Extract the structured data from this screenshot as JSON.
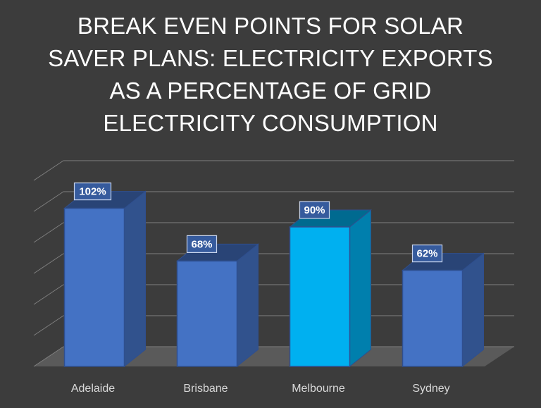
{
  "chart_data": {
    "type": "bar",
    "style": "3d-column",
    "title_lines": [
      "BREAK EVEN POINTS FOR SOLAR",
      "SAVER PLANS:  ELECTRICITY EXPORTS",
      "AS A PERCENTAGE OF GRID",
      "ELECTRICITY CONSUMPTION"
    ],
    "categories": [
      "Adelaide",
      "Brisbane",
      "Melbourne",
      "Sydney"
    ],
    "values": [
      102,
      68,
      90,
      62
    ],
    "data_labels": [
      "102%",
      "68%",
      "90%",
      "62%"
    ],
    "highlight_index": 2,
    "ylim": [
      0,
      120
    ],
    "grid": true,
    "legend": "none",
    "colors": {
      "background": "#3c3c3c",
      "bar": "#4472c4",
      "bar_highlight": "#00b0f0",
      "grid": "#7f7f7f",
      "floor": "#5a5a5a",
      "title": "#ffffff",
      "axis_text": "#d9d9d9"
    }
  }
}
